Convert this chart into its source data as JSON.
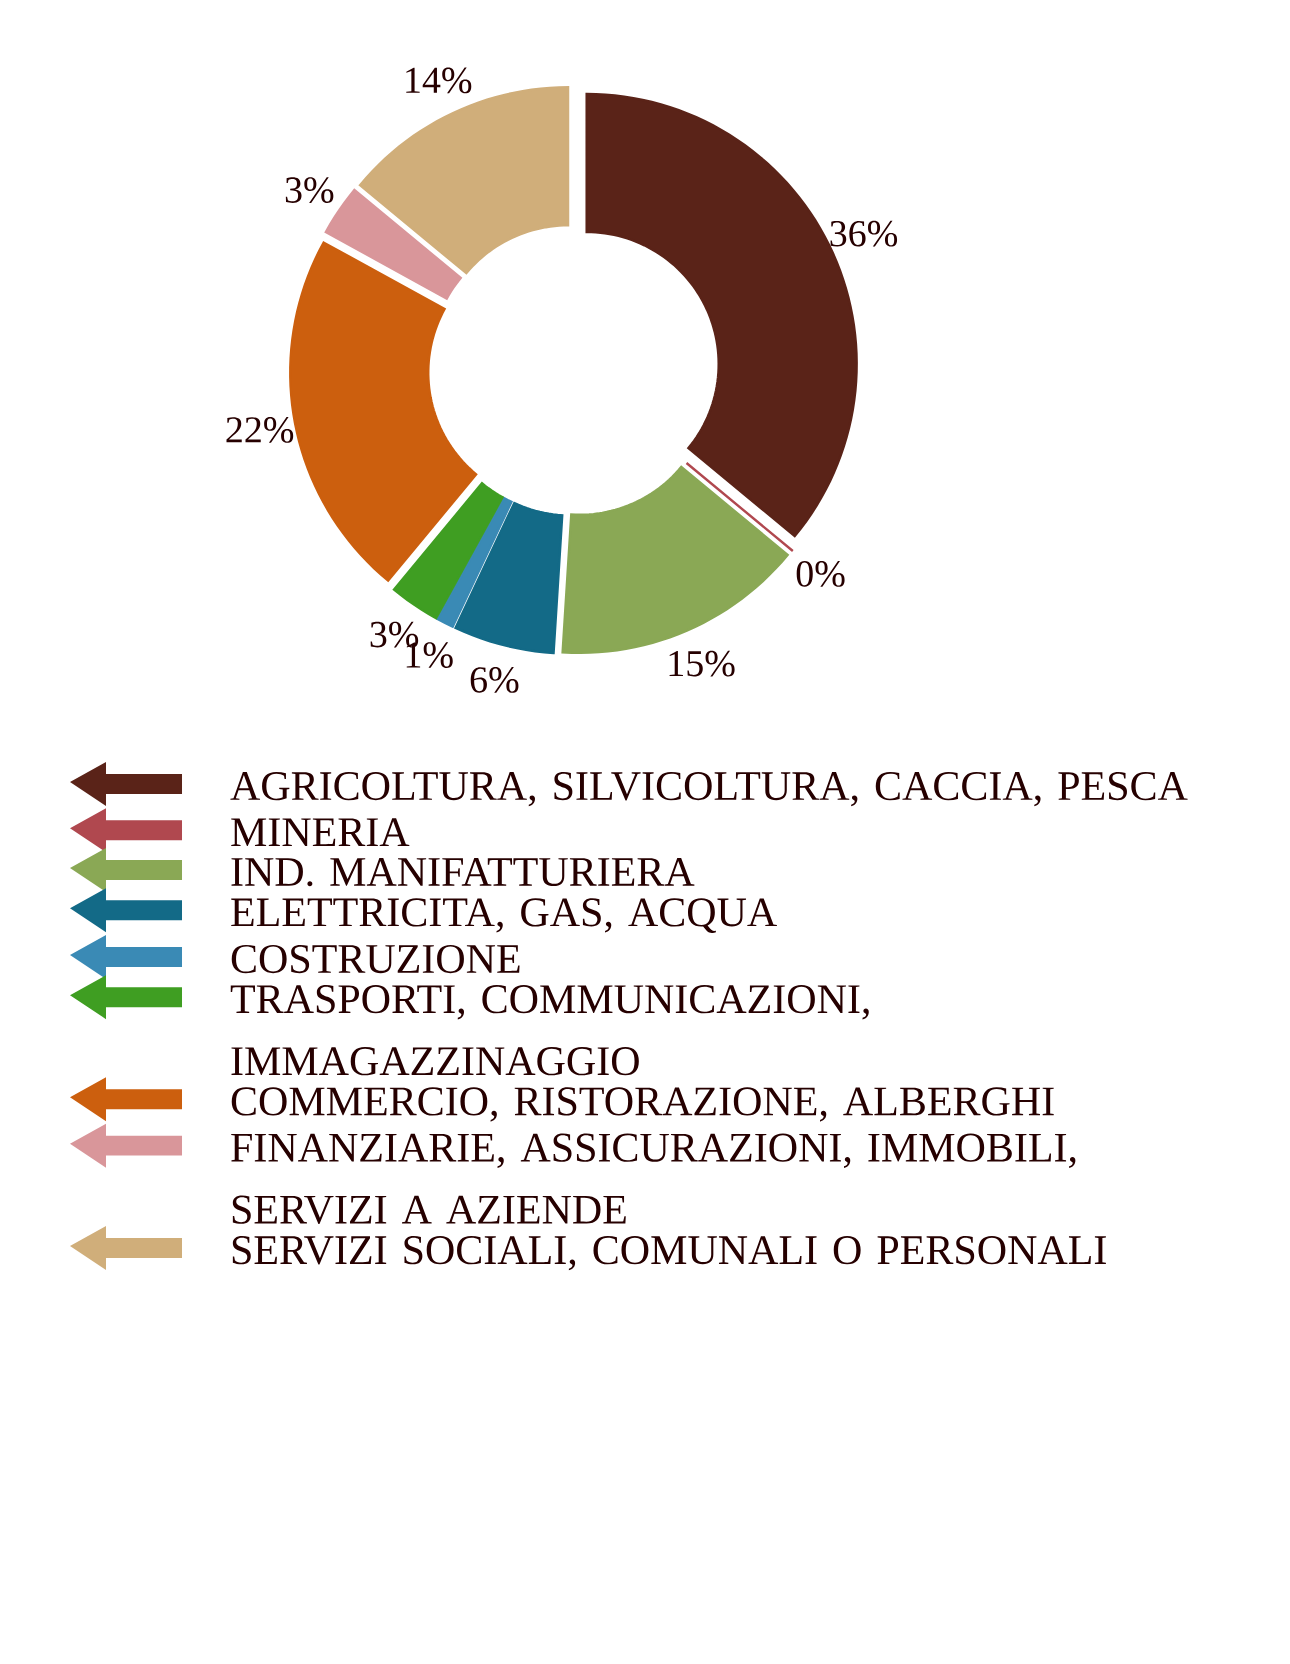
{
  "chart_data": {
    "type": "donut",
    "categories": [
      "AGRICOLTURA, SILVICOLTURA, CACCIA, PESCA",
      "MINERIA",
      "IND. MANIFATTURIERA",
      "ELETTRICITA, GAS, ACQUA",
      "COSTRUZIONE",
      "TRASPORTI, COMMUNICAZIONI, IMMAGAZZINAGGIO",
      "COMMERCIO, RISTORAZIONE, ALBERGHI",
      "FINANZIARIE, ASSICURAZIONI, IMMOBILI, SERVIZI A AZIENDE",
      "SERVIZI SOCIALI, COMUNALI O PERSONALI"
    ],
    "values": [
      36,
      0,
      15,
      6,
      1,
      3,
      22,
      3,
      14
    ],
    "value_labels": [
      "36%",
      "0%",
      "15%",
      "6%",
      "1%",
      "3%",
      "22%",
      "3%",
      "14%"
    ],
    "colors": [
      "#5a2318",
      "#b0484f",
      "#8aa855",
      "#136a87",
      "#3a8ab5",
      "#3f9e22",
      "#cc5f0e",
      "#d9969a",
      "#d0ae7a"
    ],
    "legend": "bottom"
  }
}
